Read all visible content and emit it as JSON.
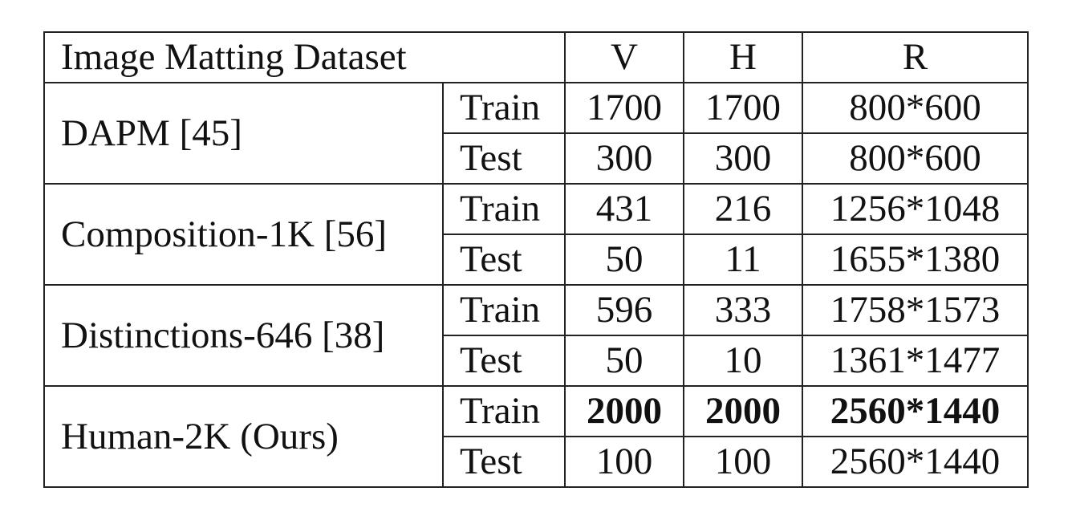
{
  "table": {
    "headers": {
      "dataset": "Image Matting Dataset",
      "v": "V",
      "h": "H",
      "r": "R"
    },
    "groups": [
      {
        "name": "DAPM [45]",
        "rows": [
          {
            "split": "Train",
            "v": "1700",
            "h": "1700",
            "r": "800*600"
          },
          {
            "split": "Test",
            "v": "300",
            "h": "300",
            "r": "800*600"
          }
        ]
      },
      {
        "name": "Composition-1K [56]",
        "rows": [
          {
            "split": "Train",
            "v": "431",
            "h": "216",
            "r": "1256*1048"
          },
          {
            "split": "Test",
            "v": "50",
            "h": "11",
            "r": "1655*1380"
          }
        ]
      },
      {
        "name": "Distinctions-646 [38]",
        "rows": [
          {
            "split": "Train",
            "v": "596",
            "h": "333",
            "r": "1758*1573"
          },
          {
            "split": "Test",
            "v": "50",
            "h": "10",
            "r": "1361*1477"
          }
        ]
      },
      {
        "name": "Human-2K (Ours)",
        "rows": [
          {
            "split": "Train",
            "v": "2000",
            "h": "2000",
            "r": "2560*1440"
          },
          {
            "split": "Test",
            "v": "100",
            "h": "100",
            "r": "2560*1440"
          }
        ]
      }
    ]
  }
}
